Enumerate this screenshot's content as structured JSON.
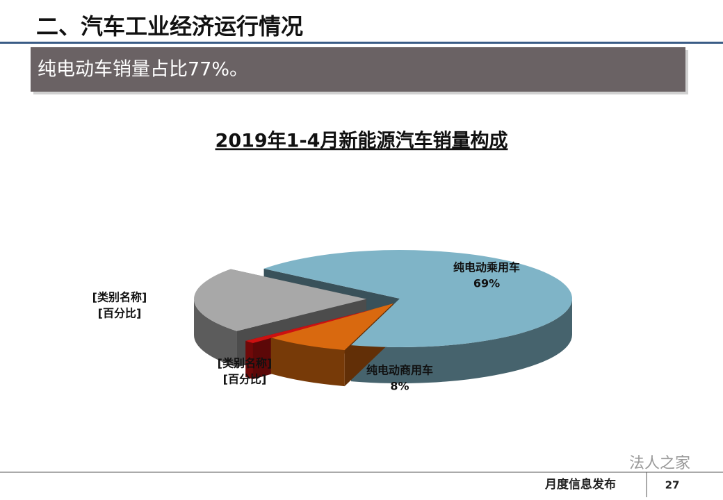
{
  "header": {
    "title": "二、汽车工业经济运行情况"
  },
  "banner": {
    "text": "纯电动车销量占比77%。"
  },
  "chart_data": {
    "type": "pie",
    "title": "2019年1-4月新能源汽车销量构成",
    "categories": [
      "纯电动乘用车",
      "纯电动商用车",
      "[类别名称]",
      "[类别名称]"
    ],
    "values": [
      69,
      8,
      1,
      22
    ],
    "value_labels": [
      "69%",
      "8%",
      "[百分比]",
      "[百分比]"
    ],
    "colors": [
      "#7fb4c7",
      "#d9690f",
      "#cc1111",
      "#a8a8a8"
    ],
    "three_d": true
  },
  "footer": {
    "text": "月度信息发布",
    "page": "27"
  },
  "watermark": "法人之家"
}
